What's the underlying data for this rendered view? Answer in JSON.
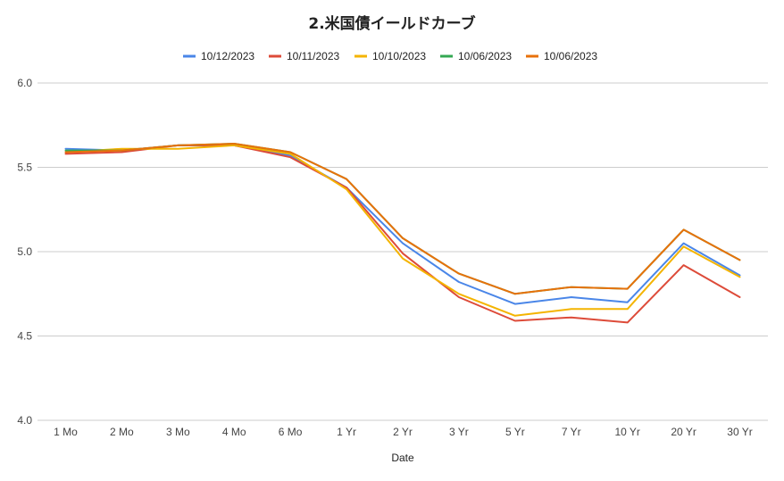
{
  "chart_data": {
    "type": "line",
    "title": "2.米国債イールドカーブ",
    "xlabel": "Date",
    "ylabel": "",
    "ylim": [
      4.0,
      6.0
    ],
    "yticks": [
      "4.0",
      "4.5",
      "5.0",
      "5.5",
      "6.0"
    ],
    "grid": true,
    "legend_position": "top",
    "categories": [
      "1 Mo",
      "2 Mo",
      "3 Mo",
      "4 Mo",
      "6 Mo",
      "1 Yr",
      "2 Yr",
      "3 Yr",
      "5 Yr",
      "7 Yr",
      "10 Yr",
      "20 Yr",
      "30 Yr"
    ],
    "series": [
      {
        "name": "10/12/2023",
        "color": "#4a86e8",
        "values": [
          5.61,
          5.6,
          5.63,
          5.63,
          5.57,
          5.38,
          5.05,
          4.82,
          4.69,
          4.73,
          4.7,
          5.05,
          4.86
        ]
      },
      {
        "name": "10/11/2023",
        "color": "#dd4b39",
        "values": [
          5.58,
          5.59,
          5.63,
          5.63,
          5.56,
          5.38,
          4.99,
          4.73,
          4.59,
          4.61,
          4.58,
          4.92,
          4.73
        ]
      },
      {
        "name": "10/10/2023",
        "color": "#f4b400",
        "values": [
          5.59,
          5.61,
          5.61,
          5.63,
          5.58,
          5.37,
          4.96,
          4.75,
          4.62,
          4.66,
          4.66,
          5.03,
          4.85
        ]
      },
      {
        "name": "10/06/2023",
        "color": "#34a853",
        "values": [
          5.6,
          5.6,
          5.63,
          5.64,
          5.59,
          5.43,
          5.08,
          4.87,
          4.75,
          4.79,
          4.78,
          5.13,
          4.95
        ]
      },
      {
        "name": "10/06/2023",
        "color": "#e8710a",
        "values": [
          5.59,
          5.6,
          5.63,
          5.64,
          5.59,
          5.43,
          5.08,
          4.87,
          4.75,
          4.79,
          4.78,
          5.13,
          4.95
        ]
      }
    ]
  }
}
